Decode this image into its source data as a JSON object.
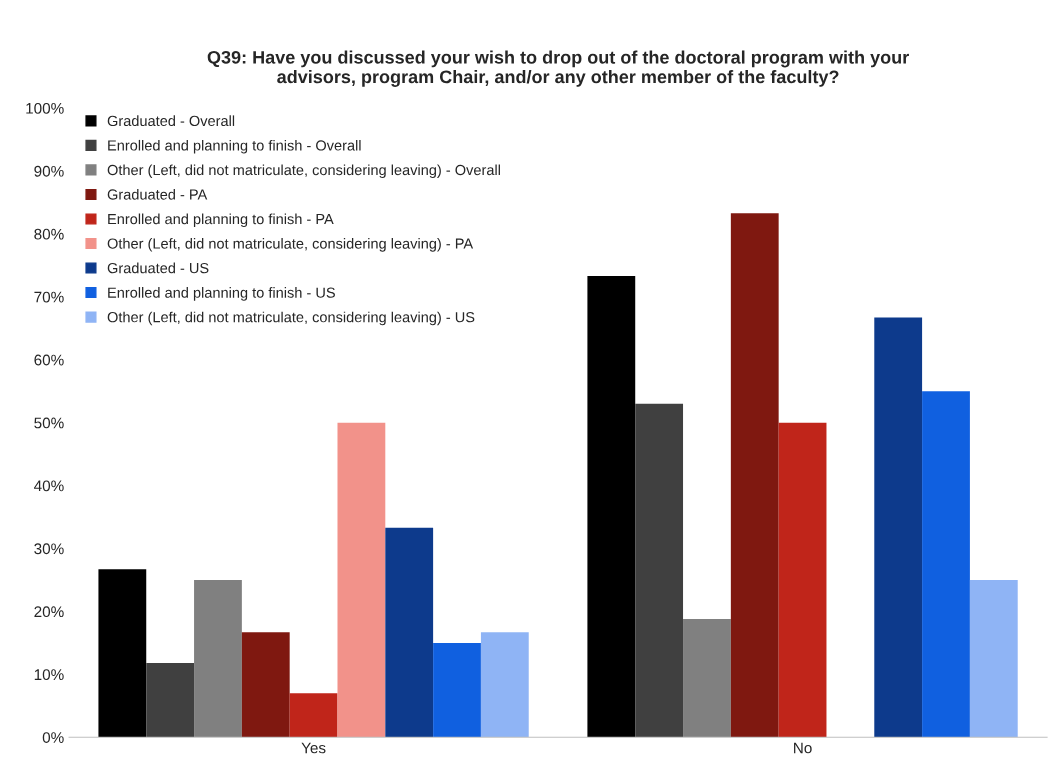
{
  "chart_data": {
    "type": "bar",
    "title": "Q39: Have you discussed your wish to drop out of the doctoral program with your\nadvisors, program Chair, and/or any other member of the faculty?",
    "categories": [
      "Yes",
      "No"
    ],
    "series": [
      {
        "name": "Graduated - Overall",
        "color": "#000000",
        "values": [
          26.7,
          73.3
        ]
      },
      {
        "name": "Enrolled and planning to finish - Overall",
        "color": "#404040",
        "values": [
          11.8,
          53.0
        ]
      },
      {
        "name": "Other (Left, did not matriculate, considering leaving) - Overall",
        "color": "#808080",
        "values": [
          25.0,
          18.8
        ]
      },
      {
        "name": "Graduated - PA",
        "color": "#7f1810",
        "values": [
          16.7,
          83.3
        ]
      },
      {
        "name": "Enrolled and planning to finish - PA",
        "color": "#c0251a",
        "values": [
          7.0,
          50.0
        ]
      },
      {
        "name": "Other (Left, did not matriculate, considering leaving) - PA",
        "color": "#f2928a",
        "values": [
          50.0,
          null
        ]
      },
      {
        "name": "Graduated - US",
        "color": "#0d3a8c",
        "values": [
          33.3,
          66.7
        ]
      },
      {
        "name": "Enrolled and planning to finish - US",
        "color": "#1060e0",
        "values": [
          15.0,
          55.0
        ]
      },
      {
        "name": "Other (Left, did not matriculate, considering leaving) - US",
        "color": "#8fb4f5",
        "values": [
          16.7,
          25.0
        ]
      }
    ],
    "ylim": [
      0,
      100
    ],
    "yticks": [
      {
        "value": 0,
        "label": "0%"
      },
      {
        "value": 10,
        "label": "10%"
      },
      {
        "value": 20,
        "label": "20%"
      },
      {
        "value": 30,
        "label": "30%"
      },
      {
        "value": 40,
        "label": "40%"
      },
      {
        "value": 50,
        "label": "50%"
      },
      {
        "value": 60,
        "label": "60%"
      },
      {
        "value": 70,
        "label": "70%"
      },
      {
        "value": 80,
        "label": "80%"
      },
      {
        "value": 90,
        "label": "90%"
      },
      {
        "value": 100,
        "label": "100%"
      }
    ],
    "grid": false,
    "legend": "top left"
  }
}
